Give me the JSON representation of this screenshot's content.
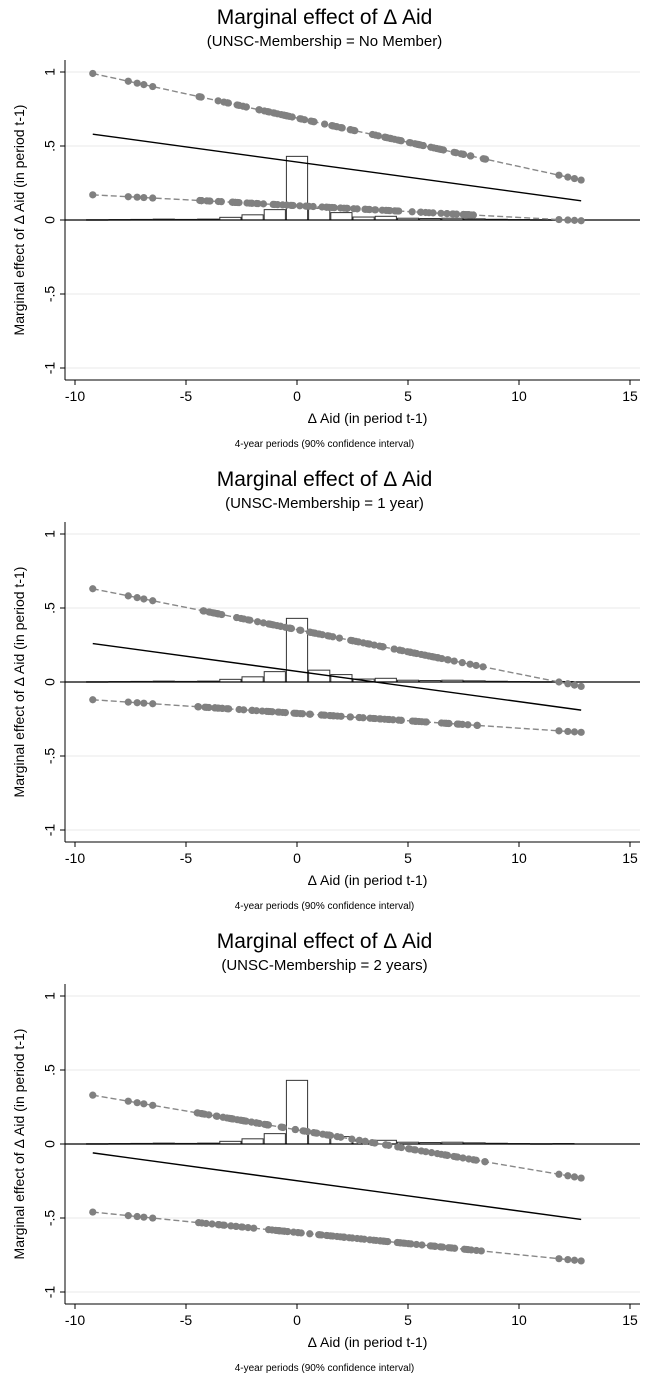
{
  "chart_data": [
    {
      "type": "line",
      "title": "Marginal effect of Δ Aid",
      "subtitle": "(UNSC-Membership = No Member)",
      "xlabel": "Δ Aid (in period t-1)",
      "ylabel": "Marginal effect of Δ Aid (in period t-1)",
      "note": "4-year periods (90% confidence interval)",
      "xlim": [
        -10,
        15
      ],
      "ylim": [
        -1,
        1
      ],
      "x_ticks": [
        "-10",
        "-5",
        "0",
        "5",
        "10",
        "15"
      ],
      "y_ticks": [
        "-1",
        "-.5",
        "0",
        ".5",
        "1"
      ],
      "x_range": [
        -9.2,
        12.8
      ],
      "series": [
        {
          "role": "upper",
          "style": "dashed-markers",
          "start": 0.99,
          "end": 0.27
        },
        {
          "role": "estimate",
          "style": "solid",
          "start": 0.58,
          "end": 0.13
        },
        {
          "role": "lower",
          "style": "dashed-markers",
          "start": 0.17,
          "end": -0.005
        }
      ],
      "histogram": {
        "bins": [
          -9,
          -8,
          -7,
          -6,
          -5,
          -4,
          -3,
          -2,
          -1,
          0,
          1,
          2,
          3,
          4,
          5,
          6,
          7,
          8,
          9,
          10,
          11,
          12
        ],
        "values": [
          0.002,
          0.003,
          0.004,
          0.006,
          0.004,
          0.006,
          0.018,
          0.035,
          0.07,
          0.43,
          0.08,
          0.05,
          0.02,
          0.025,
          0.012,
          0.01,
          0.012,
          0.008,
          0.005,
          0.003,
          0.002,
          0.003
        ]
      },
      "grid": true
    },
    {
      "type": "line",
      "title": "Marginal effect of Δ Aid",
      "subtitle": "(UNSC-Membership = 1 year)",
      "xlabel": "Δ Aid (in period t-1)",
      "ylabel": "Marginal effect of Δ Aid (in period t-1)",
      "note": "4-year periods (90% confidence interval)",
      "xlim": [
        -10,
        15
      ],
      "ylim": [
        -1,
        1
      ],
      "x_ticks": [
        "-10",
        "-5",
        "0",
        "5",
        "10",
        "15"
      ],
      "y_ticks": [
        "-1",
        "-.5",
        "0",
        ".5",
        "1"
      ],
      "x_range": [
        -9.2,
        12.8
      ],
      "series": [
        {
          "role": "upper",
          "style": "dashed-markers",
          "start": 0.63,
          "end": -0.03
        },
        {
          "role": "estimate",
          "style": "solid",
          "start": 0.26,
          "end": -0.19
        },
        {
          "role": "lower",
          "style": "dashed-markers",
          "start": -0.12,
          "end": -0.34
        }
      ],
      "histogram": {
        "bins": [
          -9,
          -8,
          -7,
          -6,
          -5,
          -4,
          -3,
          -2,
          -1,
          0,
          1,
          2,
          3,
          4,
          5,
          6,
          7,
          8,
          9,
          10,
          11,
          12
        ],
        "values": [
          0.002,
          0.003,
          0.004,
          0.006,
          0.004,
          0.006,
          0.018,
          0.035,
          0.07,
          0.43,
          0.08,
          0.05,
          0.02,
          0.025,
          0.012,
          0.01,
          0.012,
          0.008,
          0.005,
          0.003,
          0.002,
          0.003
        ]
      },
      "grid": true
    },
    {
      "type": "line",
      "title": "Marginal effect of Δ Aid",
      "subtitle": "(UNSC-Membership = 2 years)",
      "xlabel": "Δ Aid (in period t-1)",
      "ylabel": "Marginal effect of Δ Aid (in period t-1)",
      "note": "4-year periods (90% confidence interval)",
      "xlim": [
        -10,
        15
      ],
      "ylim": [
        -1,
        1
      ],
      "x_ticks": [
        "-10",
        "-5",
        "0",
        "5",
        "10",
        "15"
      ],
      "y_ticks": [
        "-1",
        "-.5",
        "0",
        ".5",
        "1"
      ],
      "x_range": [
        -9.2,
        12.8
      ],
      "series": [
        {
          "role": "upper",
          "style": "dashed-markers",
          "start": 0.33,
          "end": -0.23
        },
        {
          "role": "estimate",
          "style": "solid",
          "start": -0.06,
          "end": -0.51
        },
        {
          "role": "lower",
          "style": "dashed-markers",
          "start": -0.46,
          "end": -0.79
        }
      ],
      "histogram": {
        "bins": [
          -9,
          -8,
          -7,
          -6,
          -5,
          -4,
          -3,
          -2,
          -1,
          0,
          1,
          2,
          3,
          4,
          5,
          6,
          7,
          8,
          9,
          10,
          11,
          12
        ],
        "values": [
          0.002,
          0.003,
          0.004,
          0.006,
          0.004,
          0.006,
          0.018,
          0.035,
          0.07,
          0.43,
          0.08,
          0.05,
          0.02,
          0.025,
          0.012,
          0.01,
          0.012,
          0.008,
          0.005,
          0.003,
          0.002,
          0.003
        ]
      },
      "grid": true
    }
  ],
  "colors": {
    "ci_line": "#888888",
    "ci_marker": "#808080",
    "estimate": "#000000",
    "grid": "#eaeaea",
    "histogram_stroke": "#333333"
  }
}
